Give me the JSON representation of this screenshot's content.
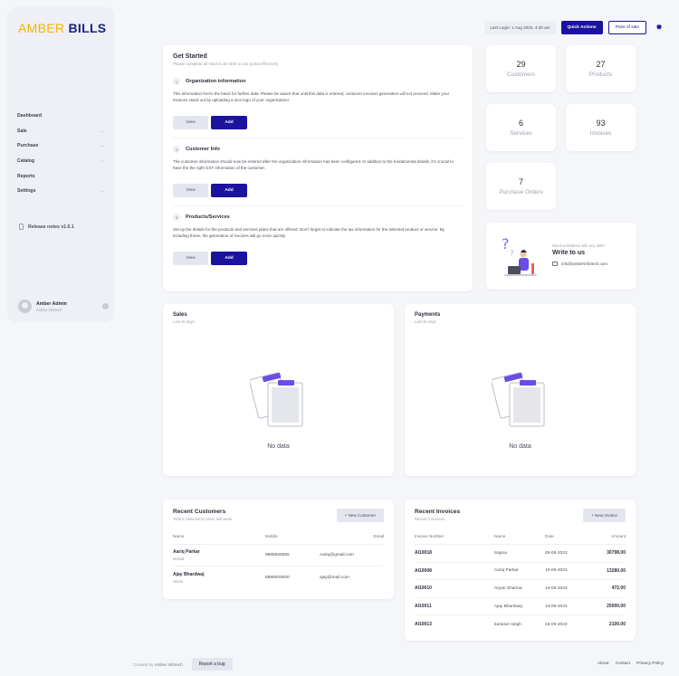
{
  "brand": {
    "part1": "AMBER",
    "part2": "BILLS"
  },
  "sidebar": {
    "items": [
      {
        "label": "Dashboard",
        "chevron": false
      },
      {
        "label": "Sale",
        "chevron": true
      },
      {
        "label": "Purchase",
        "chevron": true
      },
      {
        "label": "Catalog",
        "chevron": true
      },
      {
        "label": "Reports",
        "chevron": false
      },
      {
        "label": "Settings",
        "chevron": true
      }
    ],
    "release_notes": "Release notes v1.0.1",
    "user": {
      "name": "Amber Admin",
      "org": "Amber Infotech"
    }
  },
  "topbar": {
    "last_login": "Last Login: 1 Aug 2023, 4:30 am",
    "quick_actions": "Quick Actions",
    "point_of_sale": "Point of sale"
  },
  "get_started": {
    "title": "Get Started",
    "subtitle": "Please complete all steps to be able to use portal effectively",
    "steps": [
      {
        "num": "1",
        "title": "Organization information",
        "desc": "This information forms the basis for further data. Please be aware that until this data is entered, customer invoices generation will not proceed. Make your invoices stand out by uploading a nice logo of your organization!",
        "view": "View",
        "add": "Add"
      },
      {
        "num": "2",
        "title": "Customer Info",
        "desc": "The customer information should now be entered after the organization information has been configured. In addition to the fundamental details, it's crucial to have the the right GST information of the customer.",
        "view": "View",
        "add": "Add"
      },
      {
        "num": "3",
        "title": "Products/Services",
        "desc": "Set up the details for the products and services plans that are offered. Don't forget to indicate the tax information for the selected product or service. By including these, the generation of invoices will go more quickly.",
        "view": "View",
        "add": "Add"
      }
    ]
  },
  "stats": [
    {
      "value": "29",
      "label": "Customers"
    },
    {
      "value": "27",
      "label": "Products"
    },
    {
      "value": "6",
      "label": "Services"
    },
    {
      "value": "93",
      "label": "Invoices"
    },
    {
      "value": "7",
      "label": "Purchase Orders"
    }
  ],
  "help": {
    "need": "Need assistance with any task?",
    "title": "Write to us",
    "email": "info@amberinfotech.com"
  },
  "sales": {
    "title": "Sales",
    "subtitle": "Last 30 days",
    "empty": "No data"
  },
  "payments": {
    "title": "Payments",
    "subtitle": "Last 30 days",
    "empty": "No data"
  },
  "recent_customers": {
    "title": "Recent Customers",
    "subtitle": "Total 2 customer(s) since last week",
    "new_button": "New Customer",
    "columns": [
      "Name",
      "Mobile",
      "Email"
    ],
    "rows": [
      {
        "name": "Aariq Parkar",
        "sub": "Mohali",
        "mobile": "8888555555",
        "email": "Aariq@gmail.com"
      },
      {
        "name": "Ajay Bhardwaj",
        "sub": "Noida",
        "mobile": "8889000000",
        "email": "ajay@mail.com"
      }
    ]
  },
  "recent_invoices": {
    "title": "Recent Invoices",
    "subtitle": "Recent 5 invoices",
    "new_button": "New Invoice",
    "columns": [
      "Invoice Number",
      "Name",
      "Date",
      "Amount"
    ],
    "rows": [
      {
        "number": "AI10018",
        "name": "Sapna",
        "date": "25-06-2023",
        "amount": "30798.00"
      },
      {
        "number": "AI10008",
        "name": "Aariq Parkar",
        "date": "10-06-2023",
        "amount": "13280.00"
      },
      {
        "number": "AI10010",
        "name": "Aryan Sharma",
        "date": "14-06-2023",
        "amount": "472.00"
      },
      {
        "number": "AI10011",
        "name": "Ajay Bhardwaj",
        "date": "14-06-2023",
        "amount": "25000.00"
      },
      {
        "number": "AI10013",
        "name": "karanvir singh",
        "date": "15-06-2023",
        "amount": "2100.00"
      }
    ]
  },
  "footer": {
    "created_by": "Created by",
    "org": "Amber Infotech",
    "report_bug": "Report a bug",
    "links": [
      "About",
      "Contact",
      "Privacy Policy"
    ]
  },
  "colors": {
    "primary": "#1a139e",
    "brand_yellow": "#f4b400",
    "brand_navy": "#1a237e",
    "background": "#f5f6fa"
  },
  "icons": {
    "theme": "sun-icon",
    "release": "document-icon",
    "mail": "mail-icon",
    "settings": "gear-icon",
    "new": "plus-icon"
  }
}
